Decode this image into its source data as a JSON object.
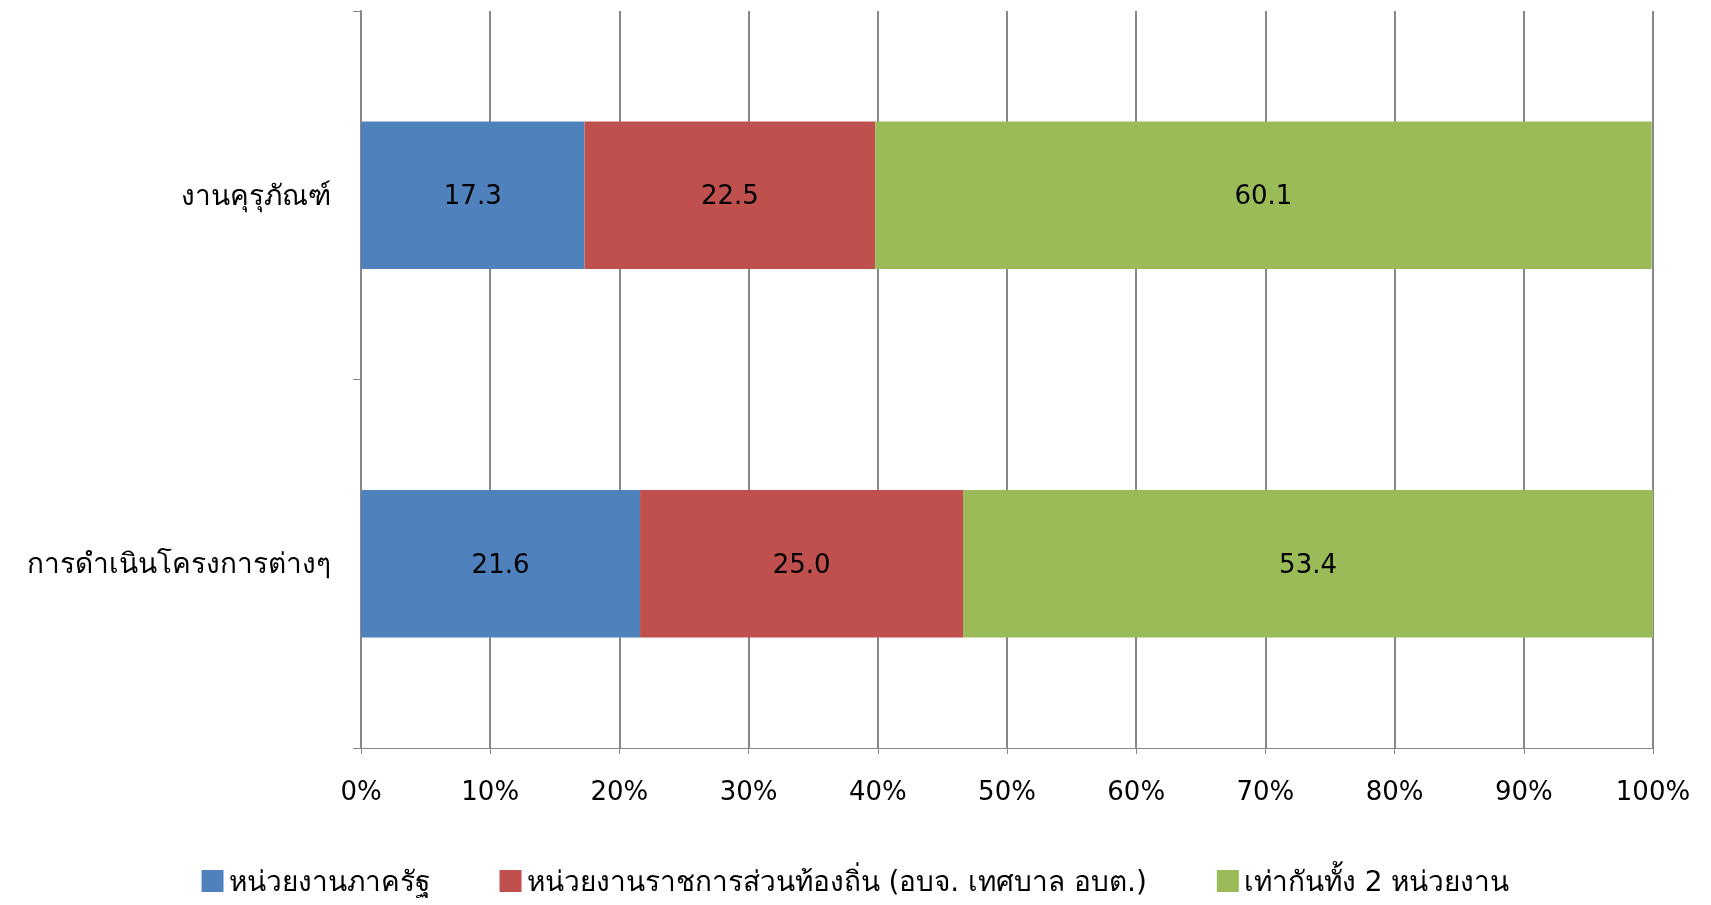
{
  "chart_data": {
    "type": "bar",
    "orientation": "horizontal",
    "stacked": true,
    "categories": [
      "งานคุรุภัณฑ์",
      "การดำเนินโครงการต่างๆ"
    ],
    "series": [
      {
        "name": "หน่วยงานภาครัฐ",
        "color": "#4f81bd",
        "values": [
          17.3,
          21.6
        ],
        "value_labels": [
          "17.3",
          "21.6"
        ]
      },
      {
        "name": "หน่วยงานราชการส่วนท้องถิ่น (อบจ. เทศบาล อบต.)",
        "color": "#c0504d",
        "values": [
          22.5,
          25.0
        ],
        "value_labels": [
          "22.5",
          "25.0"
        ]
      },
      {
        "name": "เท่ากันทั้ง 2 หน่วยงาน",
        "color": "#9bbb59",
        "values": [
          60.1,
          53.4
        ],
        "value_labels": [
          "60.1",
          "53.4"
        ]
      }
    ],
    "xlim": [
      0,
      100
    ],
    "xticks": [
      {
        "value": 0,
        "label": "0%"
      },
      {
        "value": 10,
        "label": "10%"
      },
      {
        "value": 20,
        "label": "20%"
      },
      {
        "value": 30,
        "label": "30%"
      },
      {
        "value": 40,
        "label": "40%"
      },
      {
        "value": 50,
        "label": "50%"
      },
      {
        "value": 60,
        "label": "60%"
      },
      {
        "value": 70,
        "label": "70%"
      },
      {
        "value": 80,
        "label": "80%"
      },
      {
        "value": 90,
        "label": "90%"
      },
      {
        "value": 100,
        "label": "100%"
      }
    ],
    "grid": "x",
    "legend": "bottom"
  }
}
